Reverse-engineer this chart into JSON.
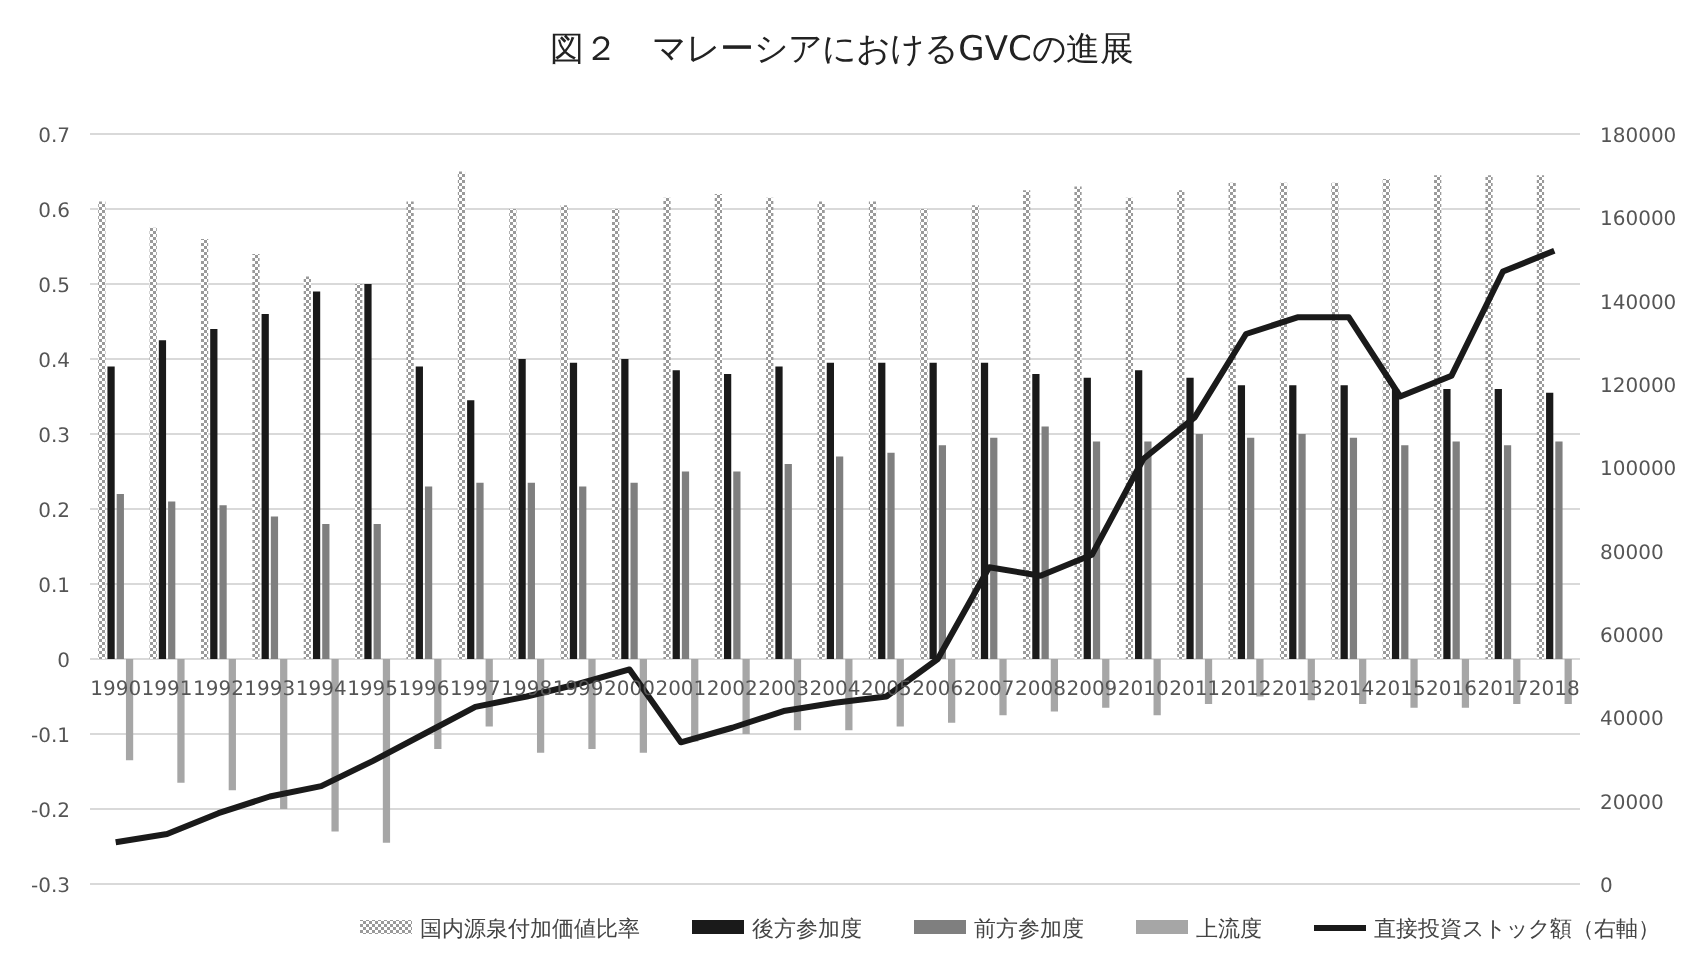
{
  "chart_data": {
    "type": "bar",
    "title": "図２　マレーシアにおけるGVCの進展",
    "categories": [
      "1990",
      "1991",
      "1992",
      "1993",
      "1994",
      "1995",
      "1996",
      "1997",
      "1998",
      "1999",
      "2000",
      "2001",
      "2002",
      "2003",
      "2004",
      "2005",
      "2006",
      "2007",
      "2008",
      "2009",
      "2010",
      "2011",
      "2012",
      "2013",
      "2014",
      "2015",
      "2016",
      "2017",
      "2018"
    ],
    "series": [
      {
        "name": "国内源泉付加価値比率",
        "color": "#9a9a9a",
        "values": [
          0.61,
          0.575,
          0.56,
          0.54,
          0.51,
          0.5,
          0.61,
          0.65,
          0.6,
          0.605,
          0.6,
          0.615,
          0.62,
          0.615,
          0.61,
          0.61,
          0.6,
          0.605,
          0.625,
          0.63,
          0.615,
          0.625,
          0.635,
          0.635,
          0.635,
          0.64,
          0.645,
          0.645,
          0.645
        ]
      },
      {
        "name": "後方参加度",
        "color": "#1a1a1a",
        "values": [
          0.39,
          0.425,
          0.44,
          0.46,
          0.49,
          0.5,
          0.39,
          0.345,
          0.4,
          0.395,
          0.4,
          0.385,
          0.38,
          0.39,
          0.395,
          0.395,
          0.395,
          0.395,
          0.38,
          0.375,
          0.385,
          0.375,
          0.365,
          0.365,
          0.365,
          0.36,
          0.36,
          0.36,
          0.355
        ]
      },
      {
        "name": "前方参加度",
        "color": "#7f7f7f",
        "values": [
          0.22,
          0.21,
          0.205,
          0.19,
          0.18,
          0.18,
          0.23,
          0.235,
          0.235,
          0.23,
          0.235,
          0.25,
          0.25,
          0.26,
          0.27,
          0.275,
          0.285,
          0.295,
          0.31,
          0.29,
          0.29,
          0.3,
          0.295,
          0.3,
          0.295,
          0.285,
          0.29,
          0.285,
          0.29
        ]
      },
      {
        "name": "上流度",
        "color": "#a6a6a6",
        "values": [
          -0.135,
          -0.165,
          -0.175,
          -0.2,
          -0.23,
          -0.245,
          -0.12,
          -0.09,
          -0.125,
          -0.12,
          -0.125,
          -0.11,
          -0.1,
          -0.095,
          -0.095,
          -0.09,
          -0.085,
          -0.075,
          -0.07,
          -0.065,
          -0.075,
          -0.06,
          -0.05,
          -0.055,
          -0.06,
          -0.065,
          -0.065,
          -0.06,
          -0.06
        ]
      },
      {
        "name": "直接投資ストック額（右軸）",
        "type": "line",
        "axis": "y2",
        "color": "#1a1a1a",
        "values": [
          10000,
          12000,
          17000,
          21000,
          23500,
          29500,
          36000,
          42500,
          45000,
          48000,
          51500,
          34000,
          37500,
          41500,
          43500,
          45000,
          54000,
          76000,
          74000,
          79000,
          102000,
          112000,
          132000,
          136000,
          136000,
          117000,
          122000,
          147000,
          152000
        ]
      }
    ],
    "ylim": [
      -0.3,
      0.7
    ],
    "yticks": [
      -0.3,
      -0.2,
      -0.1,
      0,
      0.1,
      0.2,
      0.3,
      0.4,
      0.5,
      0.6,
      0.7
    ],
    "y2lim": [
      0,
      180000
    ],
    "y2ticks": [
      0,
      20000,
      40000,
      60000,
      80000,
      100000,
      120000,
      140000,
      160000,
      180000
    ],
    "grid": "y",
    "legend": "bottom"
  }
}
